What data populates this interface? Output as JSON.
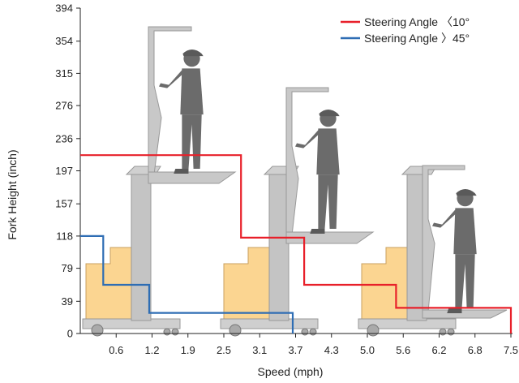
{
  "chart_data": {
    "type": "line",
    "xlabel": "Speed (mph)",
    "ylabel": "Fork Height (inch)",
    "x_ticks": [
      "0.6",
      "1.2",
      "1.9",
      "2.5",
      "3.1",
      "3.7",
      "4.3",
      "5.0",
      "5.6",
      "6.2",
      "6.8",
      "7.5"
    ],
    "y_ticks": [
      "0",
      "39",
      "79",
      "118",
      "157",
      "197",
      "236",
      "276",
      "315",
      "354",
      "394"
    ],
    "xlim": [
      0,
      7.5
    ],
    "ylim": [
      0,
      394
    ],
    "legend_position": "top-right",
    "series": [
      {
        "name": "Steering Angle 〈10°",
        "color": "#e8202a",
        "step_points": [
          [
            0,
            216
          ],
          [
            2.8,
            216
          ],
          [
            2.8,
            116
          ],
          [
            3.9,
            116
          ],
          [
            3.9,
            59
          ],
          [
            5.5,
            59
          ],
          [
            5.5,
            31
          ],
          [
            7.5,
            31
          ],
          [
            7.5,
            0
          ]
        ]
      },
      {
        "name": "Steering Angle 〉45°",
        "color": "#2e6db4",
        "step_points": [
          [
            0,
            118
          ],
          [
            0.4,
            118
          ],
          [
            0.4,
            59
          ],
          [
            1.2,
            59
          ],
          [
            1.2,
            25
          ],
          [
            3.7,
            25
          ],
          [
            3.7,
            0
          ]
        ]
      }
    ]
  }
}
